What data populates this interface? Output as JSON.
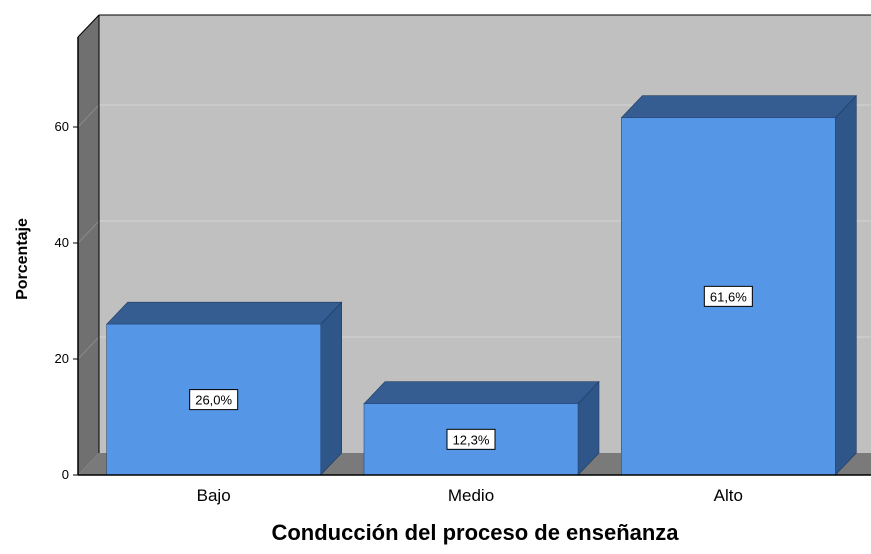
{
  "chart_data": {
    "type": "bar",
    "title": "",
    "xlabel": "Conducción del proceso de enseñanza",
    "ylabel": "Porcentaje",
    "categories": [
      "Bajo",
      "Medio",
      "Alto"
    ],
    "values": [
      26.0,
      12.3,
      61.6
    ],
    "data_labels": [
      "26,0%",
      "12,3%",
      "61,6%"
    ],
    "y_ticks": [
      0,
      20,
      40,
      60
    ],
    "ylim": [
      0,
      72
    ],
    "grid": true,
    "style": "3d",
    "colors": {
      "bar_front": "#5596e6",
      "bar_top": "#355d91",
      "bar_side": "#2f5688",
      "plot_background": "#c0c0c0",
      "left_wall": "#707070",
      "floor": "#7a7a7a",
      "gridline": "#d4d4d4"
    }
  }
}
